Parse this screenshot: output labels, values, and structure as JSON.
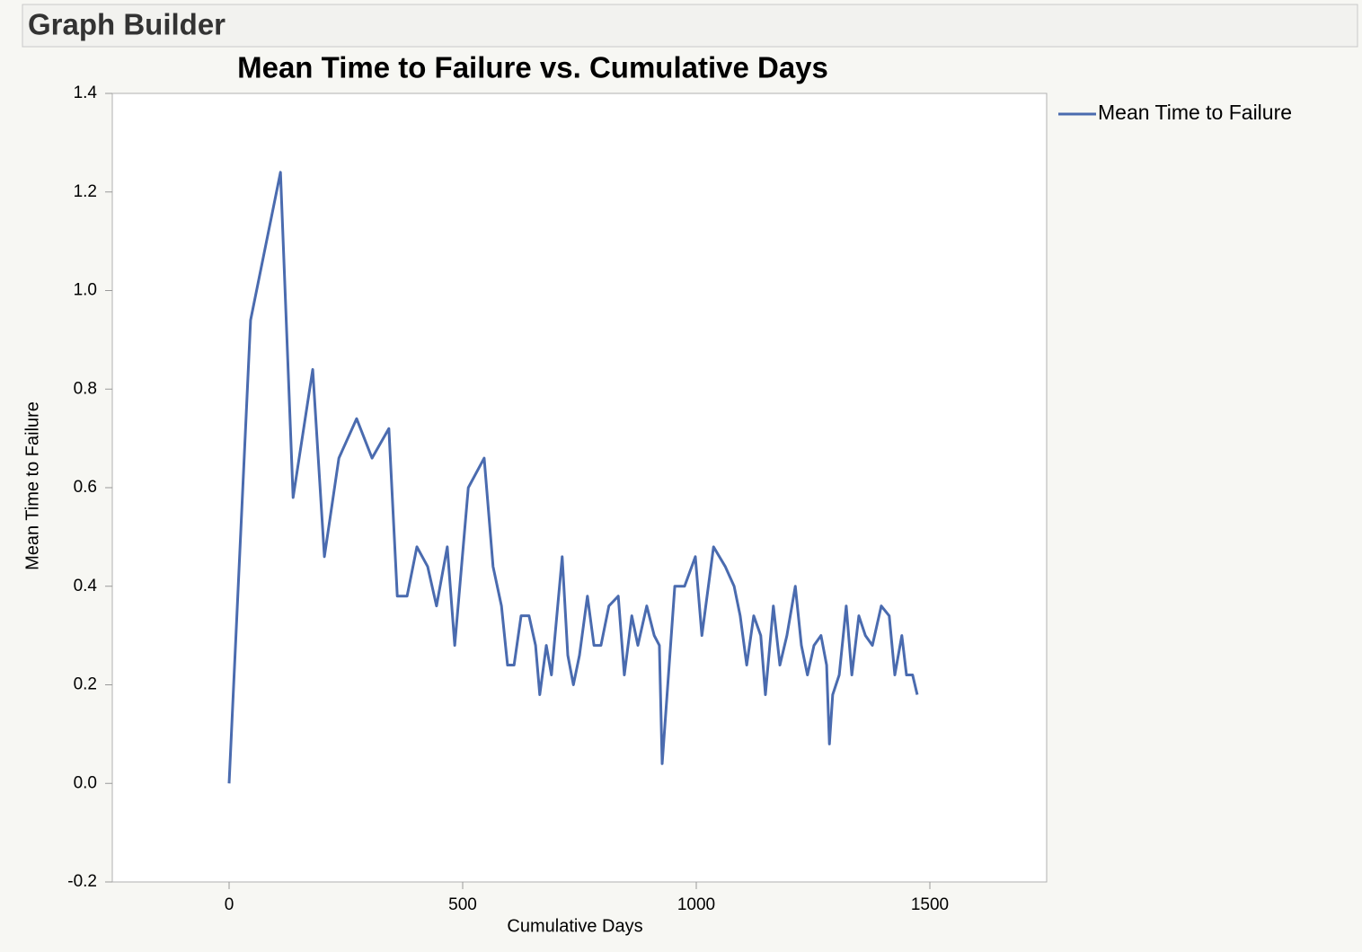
{
  "header": {
    "title": "Graph Builder"
  },
  "chart_data": {
    "type": "line",
    "title": "Mean Time to Failure vs. Cumulative Days",
    "x_label": "Cumulative Days",
    "y_label": "Mean Time to Failure",
    "x": [
      0,
      46,
      110,
      137,
      179,
      204,
      235,
      273,
      306,
      342,
      360,
      381,
      402,
      425,
      444,
      467,
      483,
      512,
      546,
      565,
      583,
      596,
      610,
      625,
      642,
      656,
      665,
      679,
      690,
      713,
      725,
      737,
      750,
      767,
      781,
      796,
      813,
      833,
      846,
      862,
      875,
      894,
      910,
      921,
      927,
      954,
      975,
      998,
      1012,
      1037,
      1062,
      1081,
      1094,
      1108,
      1123,
      1138,
      1148,
      1165,
      1179,
      1194,
      1212,
      1225,
      1238,
      1252,
      1267,
      1279,
      1285,
      1292,
      1306,
      1321,
      1333,
      1348,
      1362,
      1377,
      1396,
      1413,
      1425,
      1440,
      1450,
      1463,
      1473
    ],
    "series": [
      {
        "name": "Mean Time to Failure",
        "color": "#4a6baf",
        "values": [
          0,
          0.94,
          1.24,
          0.58,
          0.84,
          0.46,
          0.66,
          0.74,
          0.66,
          0.72,
          0.38,
          0.38,
          0.48,
          0.44,
          0.36,
          0.48,
          0.28,
          0.6,
          0.66,
          0.44,
          0.36,
          0.24,
          0.24,
          0.34,
          0.34,
          0.28,
          0.18,
          0.28,
          0.22,
          0.46,
          0.26,
          0.2,
          0.26,
          0.38,
          0.28,
          0.28,
          0.36,
          0.38,
          0.22,
          0.34,
          0.28,
          0.36,
          0.3,
          0.28,
          0.04,
          0.4,
          0.4,
          0.46,
          0.3,
          0.48,
          0.44,
          0.4,
          0.34,
          0.24,
          0.34,
          0.3,
          0.18,
          0.36,
          0.24,
          0.3,
          0.4,
          0.28,
          0.22,
          0.28,
          0.3,
          0.24,
          0.08,
          0.18,
          0.22,
          0.36,
          0.22,
          0.34,
          0.3,
          0.28,
          0.36,
          0.34,
          0.22,
          0.3,
          0.22,
          0.22,
          0.18
        ]
      }
    ],
    "xlim": [
      -250,
      1750
    ],
    "xticks": [
      0,
      500,
      1000,
      1500
    ],
    "ylim": [
      -0.2,
      1.4
    ],
    "yticks": [
      -0.2,
      {
        "value": 0,
        "label": "0.0"
      },
      0.2,
      0.4,
      0.6,
      0.8,
      {
        "value": 1,
        "label": "1.0"
      },
      1.2,
      1.4
    ],
    "legend": "right"
  }
}
